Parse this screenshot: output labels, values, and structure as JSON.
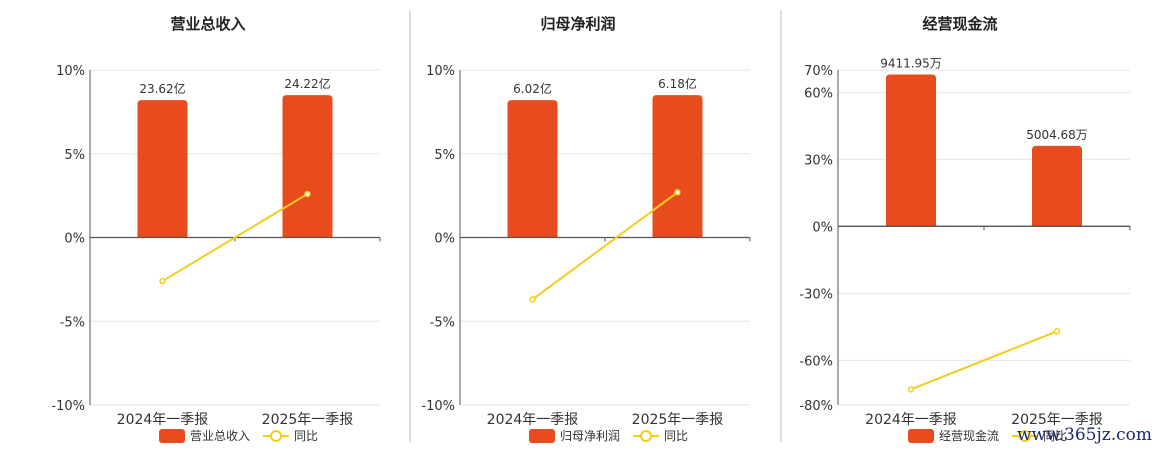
{
  "colors": {
    "bar": "#e84c1c",
    "line": "#f2cd1c",
    "grid": "#e6e6e6",
    "axis": "#555555",
    "divider": "#bbbbbb"
  },
  "watermark": "www.365jz.com",
  "chart_data": [
    {
      "type": "bar",
      "title": "营业总收入",
      "categories": [
        "2024年一季报",
        "2025年一季报"
      ],
      "yticks": [
        "10%",
        "5%",
        "0%",
        "-5%",
        "-10%"
      ],
      "ylim": [
        -10,
        10
      ],
      "series": [
        {
          "name": "营业总收入",
          "type": "bar",
          "values": [
            8.2,
            8.5
          ],
          "labels": [
            "23.62亿",
            "24.22亿"
          ]
        },
        {
          "name": "同比",
          "type": "line",
          "values": [
            -2.6,
            2.6
          ]
        }
      ],
      "legend": "bottom"
    },
    {
      "type": "bar",
      "title": "归母净利润",
      "categories": [
        "2024年一季报",
        "2025年一季报"
      ],
      "yticks": [
        "10%",
        "5%",
        "0%",
        "-5%",
        "-10%"
      ],
      "ylim": [
        -10,
        10
      ],
      "series": [
        {
          "name": "归母净利润",
          "type": "bar",
          "values": [
            8.2,
            8.5
          ],
          "labels": [
            "6.02亿",
            "6.18亿"
          ]
        },
        {
          "name": "同比",
          "type": "line",
          "values": [
            -3.7,
            2.7
          ]
        }
      ],
      "legend": "bottom"
    },
    {
      "type": "bar",
      "title": "经营现金流",
      "categories": [
        "2024年一季报",
        "2025年一季报"
      ],
      "yticks": [
        "70%",
        "60%",
        "30%",
        "0%",
        "-30%",
        "-60%",
        "-80%"
      ],
      "ylim": [
        -80,
        70
      ],
      "series": [
        {
          "name": "经营现金流",
          "type": "bar",
          "values": [
            68,
            36
          ],
          "labels": [
            "9411.95万",
            "5004.68万"
          ]
        },
        {
          "name": "同比",
          "type": "line",
          "values": [
            -73,
            -47
          ]
        }
      ],
      "legend": "bottom"
    }
  ]
}
